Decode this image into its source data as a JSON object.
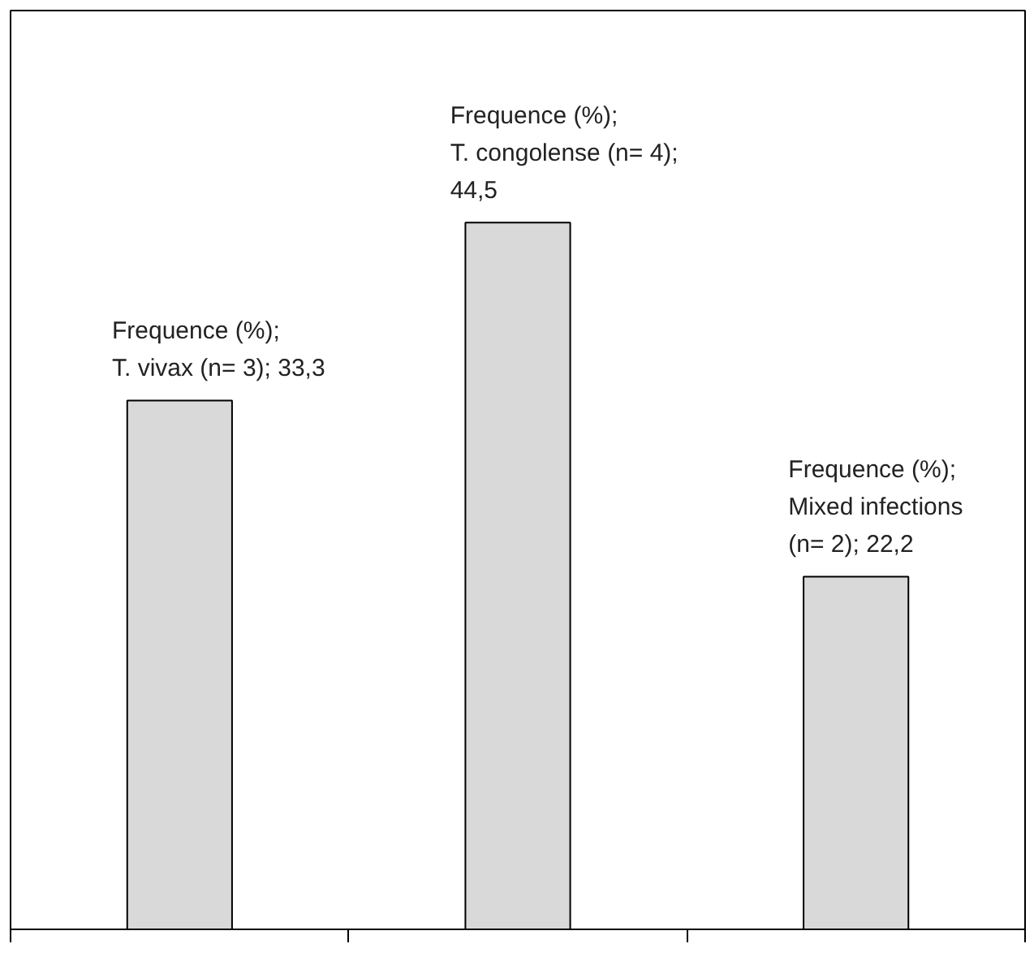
{
  "chart_data": {
    "type": "bar",
    "categories": [
      null,
      null,
      null
    ],
    "series": [
      {
        "color": "#d9d9d9",
        "values": [
          33.3,
          44.5,
          22.2
        ],
        "value_labels": [
          "Frequence (%);\nT. vivax (n= 3); 33,3",
          "Frequence (%);\nT. congolense (n= 4);\n44,5",
          "Frequence (%);\nMixed infections\n(n= 2); 22,2"
        ]
      }
    ],
    "tick_labels": false,
    "grid": false
  }
}
